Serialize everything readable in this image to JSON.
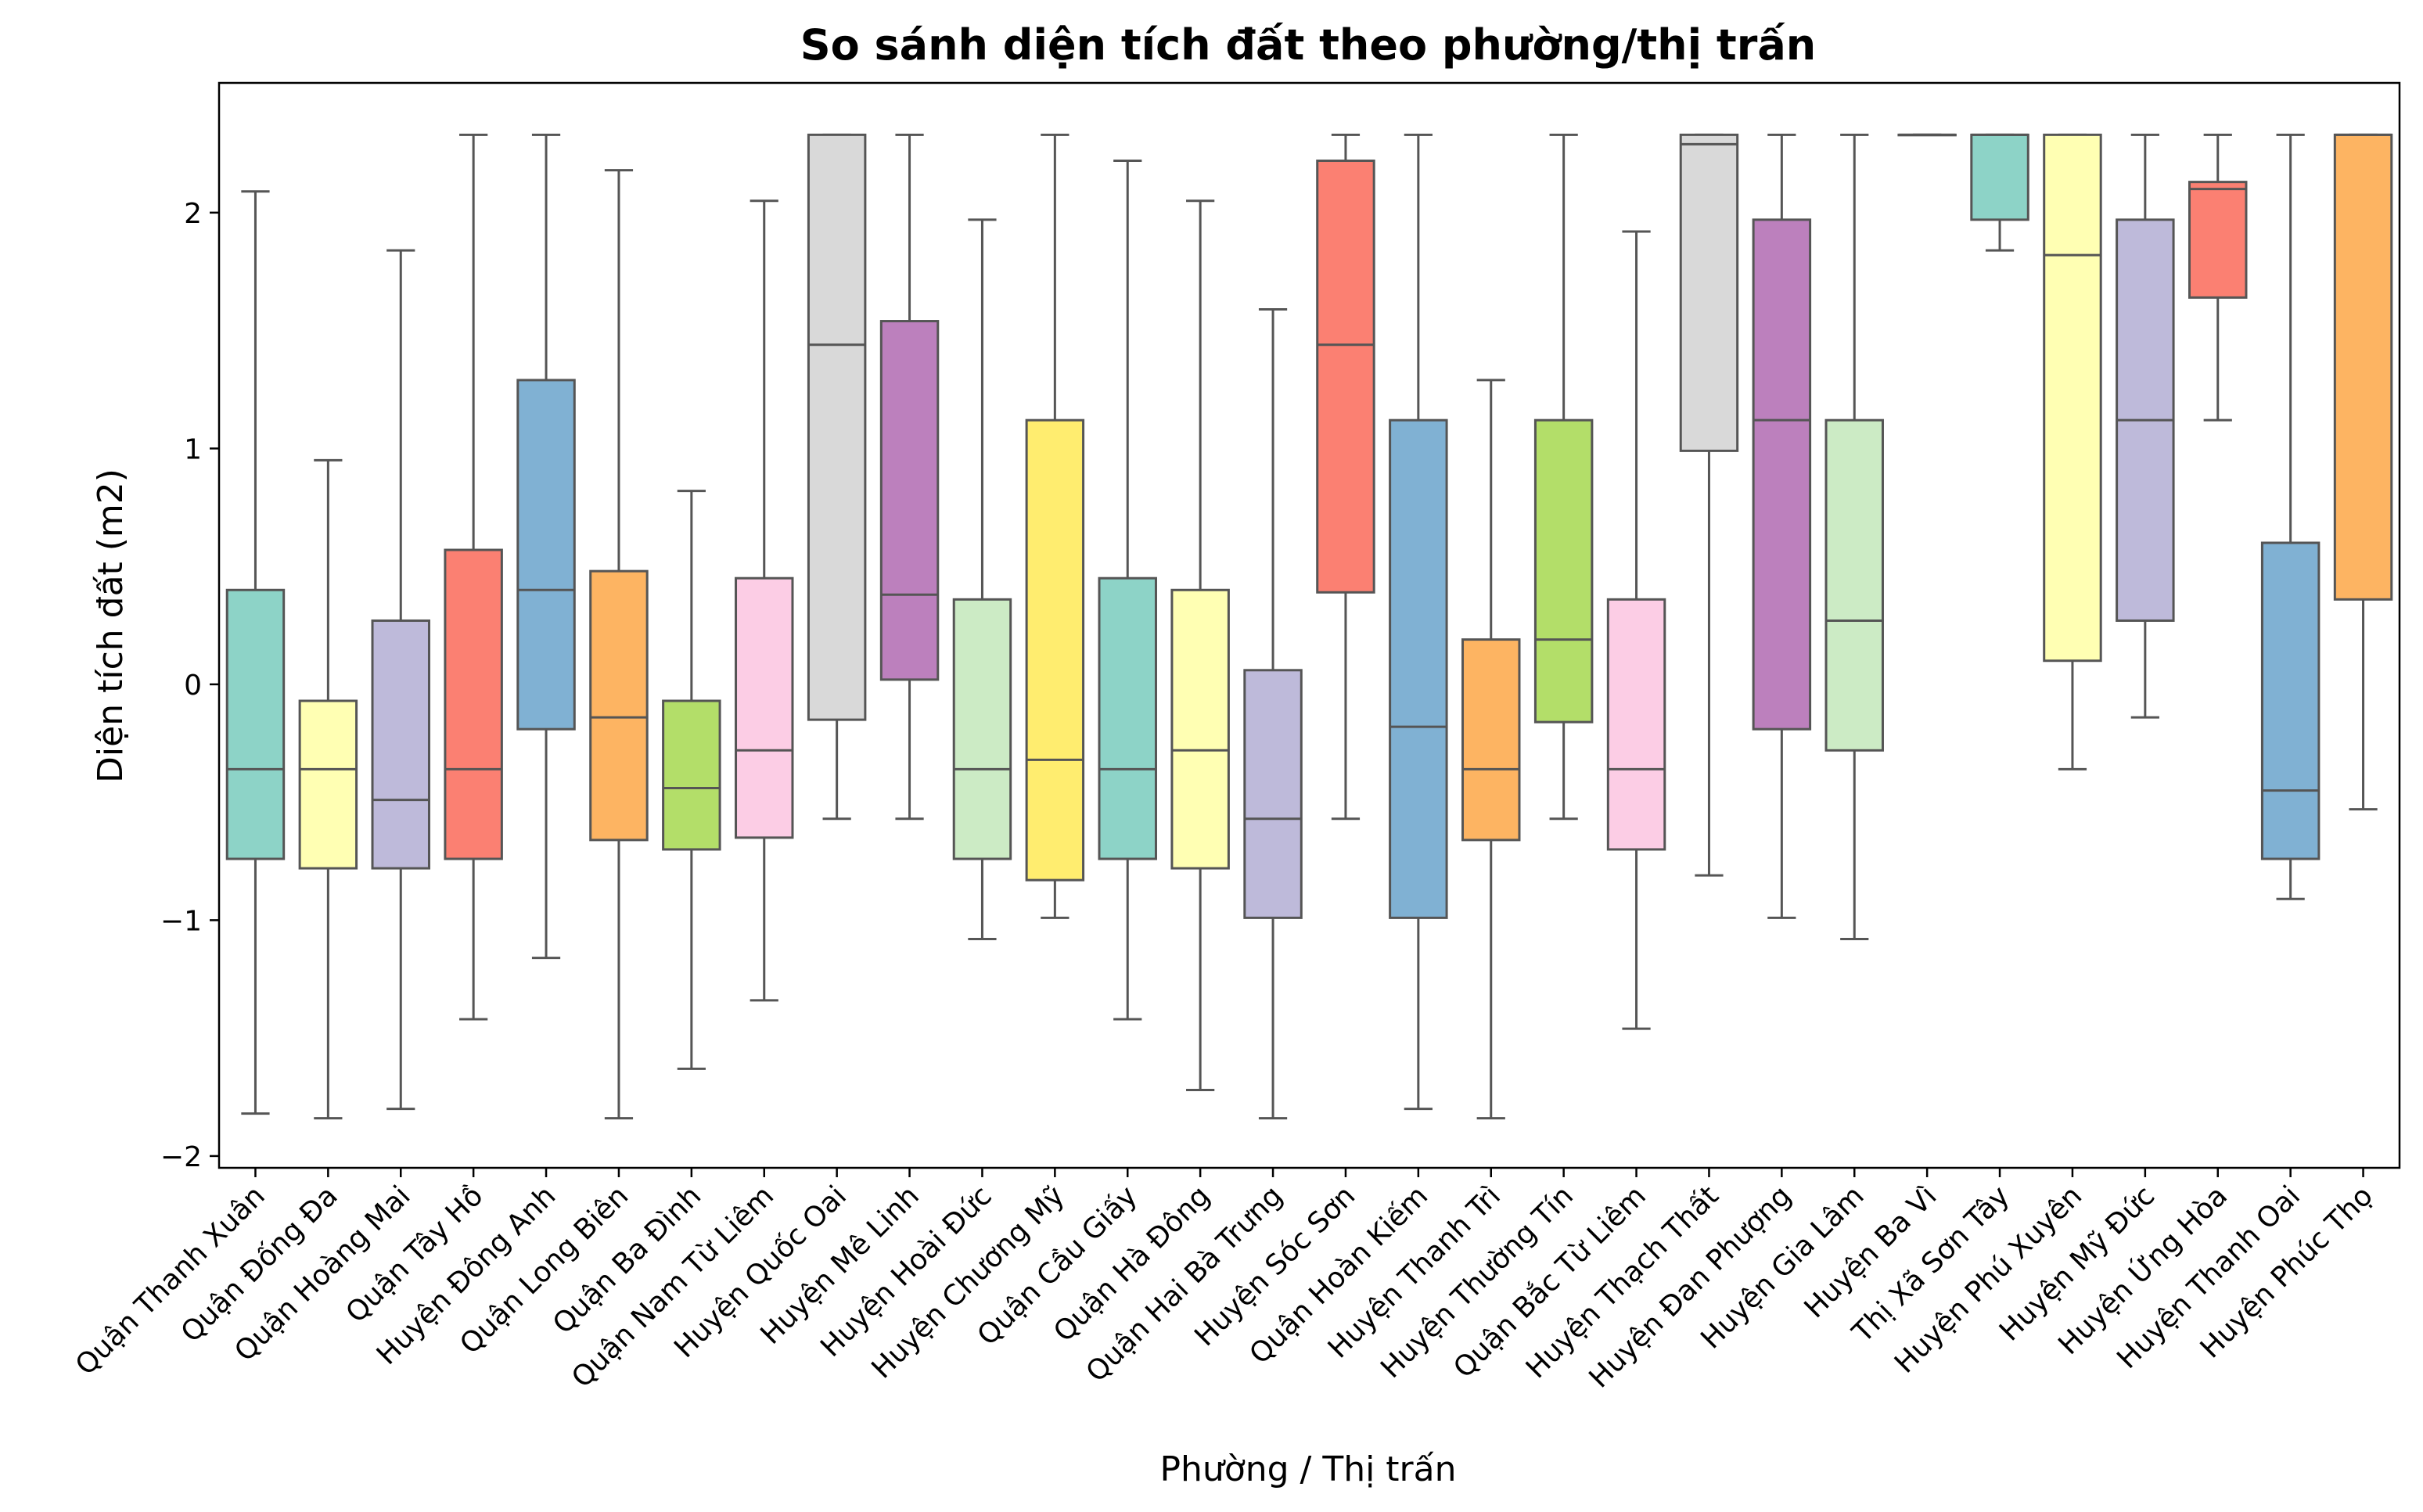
{
  "chart_data": {
    "type": "box",
    "title": "So sánh diện tích đất theo phường/thị trấn",
    "xlabel": "Phường / Thị trấn",
    "ylabel": "Diện tích đất (m2)",
    "ylim": [
      -2.05,
      2.55
    ],
    "yticks": [
      -2,
      -1,
      0,
      1,
      2
    ],
    "grid": false,
    "legend": "none",
    "categories": [
      "Quận Thanh Xuân",
      "Quận Đống Đa",
      "Quận Hoàng Mai",
      "Quận Tây Hồ",
      "Huyện Đông Anh",
      "Quận Long Biên",
      "Quận Ba Đình",
      "Quận Nam Từ Liêm",
      "Huyện Quốc Oai",
      "Huyện Mê Linh",
      "Huyện Hoài Đức",
      "Huyện Chương Mỹ",
      "Quận Cầu Giấy",
      "Quận Hà Đông",
      "Quận Hai Bà Trưng",
      "Huyện Sóc Sơn",
      "Quận Hoàn Kiếm",
      "Huyện Thanh Trì",
      "Huyện Thường Tín",
      "Quận Bắc Từ Liêm",
      "Huyện Thạch Thất",
      "Huyện Đan Phượng",
      "Huyện Gia Lâm",
      "Huyện Ba Vì",
      "Thị Xã Sơn Tây",
      "Huyện Phú Xuyên",
      "Huyện Mỹ Đức",
      "Huyện Ứng Hòa",
      "Huyện Thanh Oai",
      "Huyện Phúc Thọ"
    ],
    "boxes": [
      {
        "whislo": -1.82,
        "q1": -0.74,
        "med": -0.36,
        "q3": 0.4,
        "whishi": 2.09,
        "color": "#8dd3c7"
      },
      {
        "whislo": -1.84,
        "q1": -0.78,
        "med": -0.36,
        "q3": -0.07,
        "whishi": 0.95,
        "color": "#ffffb3"
      },
      {
        "whislo": -1.8,
        "q1": -0.78,
        "med": -0.49,
        "q3": 0.27,
        "whishi": 1.84,
        "color": "#bebada"
      },
      {
        "whislo": -1.42,
        "q1": -0.74,
        "med": -0.36,
        "q3": 0.57,
        "whishi": 2.33,
        "color": "#fb8072"
      },
      {
        "whislo": -1.16,
        "q1": -0.19,
        "med": 0.4,
        "q3": 1.29,
        "whishi": 2.33,
        "color": "#80b1d3"
      },
      {
        "whislo": -1.84,
        "q1": -0.66,
        "med": -0.14,
        "q3": 0.48,
        "whishi": 2.18,
        "color": "#fdb462"
      },
      {
        "whislo": -1.63,
        "q1": -0.7,
        "med": -0.44,
        "q3": -0.07,
        "whishi": 0.82,
        "color": "#b3de69"
      },
      {
        "whislo": -1.34,
        "q1": -0.65,
        "med": -0.28,
        "q3": 0.45,
        "whishi": 2.05,
        "color": "#fccde5"
      },
      {
        "whislo": -0.57,
        "q1": -0.15,
        "med": 1.44,
        "q3": 2.33,
        "whishi": 2.33,
        "color": "#d9d9d9"
      },
      {
        "whislo": -0.57,
        "q1": 0.02,
        "med": 0.38,
        "q3": 1.54,
        "whishi": 2.33,
        "color": "#bc80bd"
      },
      {
        "whislo": -1.08,
        "q1": -0.74,
        "med": -0.36,
        "q3": 0.36,
        "whishi": 1.97,
        "color": "#ccebc5"
      },
      {
        "whislo": -0.99,
        "q1": -0.83,
        "med": -0.32,
        "q3": 1.12,
        "whishi": 2.33,
        "color": "#ffed6f"
      },
      {
        "whislo": -1.42,
        "q1": -0.74,
        "med": -0.36,
        "q3": 0.45,
        "whishi": 2.22,
        "color": "#8dd3c7"
      },
      {
        "whislo": -1.72,
        "q1": -0.78,
        "med": -0.28,
        "q3": 0.4,
        "whishi": 2.05,
        "color": "#ffffb3"
      },
      {
        "whislo": -1.84,
        "q1": -0.99,
        "med": -0.57,
        "q3": 0.06,
        "whishi": 1.59,
        "color": "#bebada"
      },
      {
        "whislo": -0.57,
        "q1": 0.39,
        "med": 1.44,
        "q3": 2.22,
        "whishi": 2.33,
        "color": "#fb8072"
      },
      {
        "whislo": -1.8,
        "q1": -0.99,
        "med": -0.18,
        "q3": 1.12,
        "whishi": 2.33,
        "color": "#80b1d3"
      },
      {
        "whislo": -1.84,
        "q1": -0.66,
        "med": -0.36,
        "q3": 0.19,
        "whishi": 1.29,
        "color": "#fdb462"
      },
      {
        "whislo": -0.57,
        "q1": -0.16,
        "med": 0.19,
        "q3": 1.12,
        "whishi": 2.33,
        "color": "#b3de69"
      },
      {
        "whislo": -1.46,
        "q1": -0.7,
        "med": -0.36,
        "q3": 0.36,
        "whishi": 1.92,
        "color": "#fccde5"
      },
      {
        "whislo": -0.81,
        "q1": 0.99,
        "med": 2.29,
        "q3": 2.33,
        "whishi": 2.33,
        "color": "#d9d9d9"
      },
      {
        "whislo": -0.99,
        "q1": -0.19,
        "med": 1.12,
        "q3": 1.97,
        "whishi": 2.33,
        "color": "#bc80bd"
      },
      {
        "whislo": -1.08,
        "q1": -0.28,
        "med": 0.27,
        "q3": 1.12,
        "whishi": 2.33,
        "color": "#ccebc5"
      },
      {
        "whislo": 2.33,
        "q1": 2.33,
        "med": 2.33,
        "q3": 2.33,
        "whishi": 2.33,
        "color": "#ffed6f"
      },
      {
        "whislo": 1.84,
        "q1": 1.97,
        "med": 2.33,
        "q3": 2.33,
        "whishi": 2.33,
        "color": "#8dd3c7"
      },
      {
        "whislo": -0.36,
        "q1": 0.1,
        "med": 1.82,
        "q3": 2.33,
        "whishi": 2.33,
        "color": "#ffffb3"
      },
      {
        "whislo": -0.14,
        "q1": 0.27,
        "med": 1.12,
        "q3": 1.97,
        "whishi": 2.33,
        "color": "#bebada"
      },
      {
        "whislo": 1.12,
        "q1": 1.64,
        "med": 2.1,
        "q3": 2.13,
        "whishi": 2.33,
        "color": "#fb8072"
      },
      {
        "whislo": -0.91,
        "q1": -0.74,
        "med": -0.45,
        "q3": 0.6,
        "whishi": 2.33,
        "color": "#80b1d3"
      },
      {
        "whislo": -0.53,
        "q1": 0.36,
        "med": 2.33,
        "q3": 2.33,
        "whishi": 2.33,
        "color": "#fdb462"
      }
    ]
  }
}
